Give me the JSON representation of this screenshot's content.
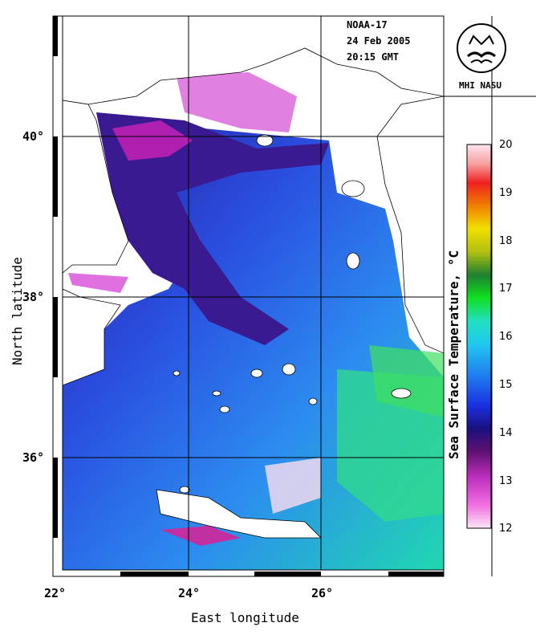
{
  "header": {
    "satellite": "NOAA-17",
    "date": "24 Feb 2005",
    "time": "20:15 GMT"
  },
  "logo": {
    "text": "MHI NASU"
  },
  "axes": {
    "x_title": "East longitude",
    "y_title": "North latitude",
    "x_ticks": [
      "22°",
      "24°",
      "26°"
    ],
    "y_ticks": [
      "40°",
      "38°",
      "36°"
    ]
  },
  "colorbar": {
    "title": "Sea Surface Temperature, °C",
    "ticks": [
      "20",
      "19",
      "18",
      "17",
      "16",
      "15",
      "14",
      "13",
      "12"
    ],
    "range": [
      12,
      20
    ],
    "stops": [
      "#fde6f6",
      "#f070e0",
      "#a0109f",
      "#20106a",
      "#1a2ad0",
      "#1a90f0",
      "#20e0d0",
      "#10e010",
      "#208020",
      "#c0d010",
      "#f0e000",
      "#f08000",
      "#f02020",
      "#f8a0a0",
      "#fde6ee"
    ]
  },
  "map": {
    "region": "Aegean Sea",
    "lon_range": [
      22,
      27.8
    ],
    "lat_range": [
      34.7,
      41.3
    ]
  },
  "colors": {
    "land": "#ffffff",
    "coast": "#000000",
    "grid": "#000000"
  }
}
